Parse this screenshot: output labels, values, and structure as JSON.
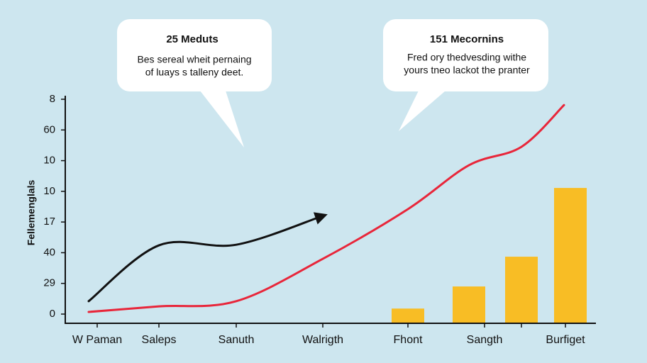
{
  "chart_data": {
    "type": "combo",
    "y_label": "Fellemenglals",
    "categories": [
      "W Paman",
      "Saleps",
      "Sanuth",
      "Walrigth",
      "Fhont",
      "Sangth",
      null,
      "Burfiget"
    ],
    "ylim": [
      0,
      7
    ],
    "yticks": [
      0,
      {
        "value": 1,
        "label": "29"
      },
      {
        "value": 2,
        "label": "40"
      },
      {
        "value": 3,
        "label": "17"
      },
      {
        "value": 4,
        "label": "10"
      },
      {
        "value": 5,
        "label": "10"
      },
      {
        "value": 6,
        "label": "60"
      },
      {
        "value": 7,
        "label": "8"
      }
    ],
    "series": [
      {
        "kind": "line",
        "color": "#111111",
        "values": [
          0.42,
          2.24,
          2.26,
          3.2,
          null,
          null,
          null,
          null
        ]
      },
      {
        "kind": "line",
        "color": "#e8263a",
        "values": [
          0.07,
          0.25,
          0.42,
          1.8,
          3.42,
          4.85,
          5.45,
          6.81
        ]
      },
      {
        "kind": "bar",
        "color": "#f8bd25",
        "values": [
          null,
          null,
          null,
          null,
          0.18,
          0.9,
          1.87,
          4.11
        ]
      }
    ],
    "annotations": [
      {
        "title": "25 Meduts",
        "text": [
          "Bes sereal wheit pernaing",
          "of luays s talleny deet."
        ]
      },
      {
        "title": "151 Mecornins",
        "text": [
          "Fred ory thedvesding withe",
          "yours tneo lackot the pranter"
        ]
      }
    ]
  }
}
